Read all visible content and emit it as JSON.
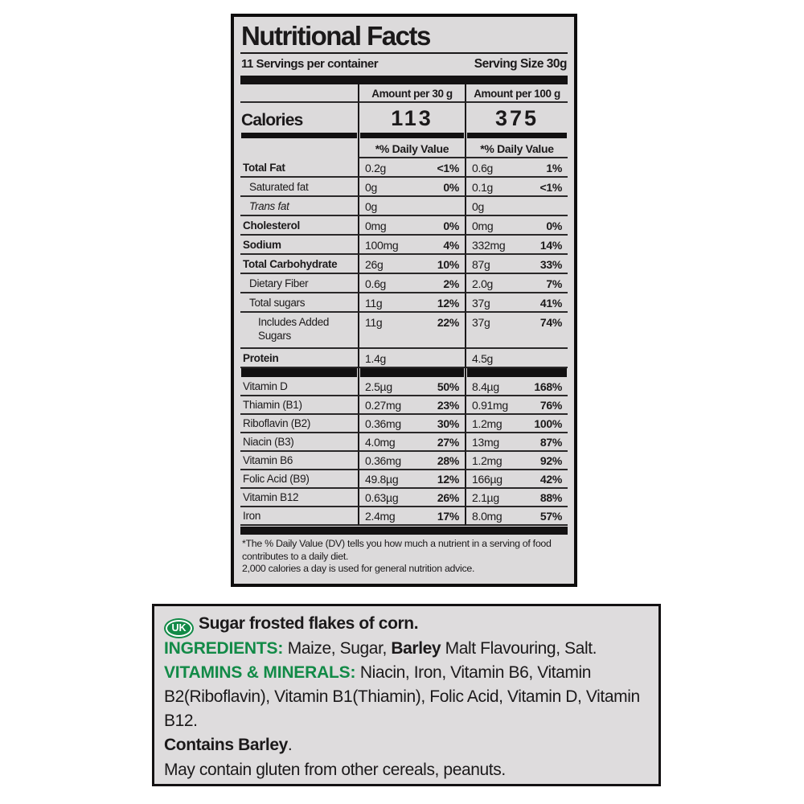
{
  "colors": {
    "green": "#128a47",
    "panel_bg": "#dcdadb",
    "bar_black": "#141213"
  },
  "nutrition_panel": {
    "title": "Nutritional Facts",
    "servings_per_container": "11 Servings per container",
    "serving_size": "Serving Size 30g",
    "column_headers": {
      "per30": "Amount per 30 g",
      "per100": "Amount per 100 g"
    },
    "calories": {
      "label": "Calories",
      "per30": "113",
      "per100": "375"
    },
    "daily_value_header": "*% Daily Value",
    "nutrient_rows": [
      {
        "label": "Total Fat",
        "bold": true,
        "italic": false,
        "indent": 0,
        "amt30": "0.2g",
        "dv30": "<1%",
        "amt100": "0.6g",
        "dv100": "1%"
      },
      {
        "label": "Saturated fat",
        "bold": false,
        "italic": false,
        "indent": 1,
        "amt30": "0g",
        "dv30": "0%",
        "amt100": "0.1g",
        "dv100": "<1%"
      },
      {
        "label": "Trans fat",
        "bold": false,
        "italic": true,
        "indent": 1,
        "amt30": "0g",
        "dv30": "",
        "amt100": "0g",
        "dv100": ""
      },
      {
        "label": "Cholesterol",
        "bold": true,
        "italic": false,
        "indent": 0,
        "amt30": "0mg",
        "dv30": "0%",
        "amt100": "0mg",
        "dv100": "0%"
      },
      {
        "label": "Sodium",
        "bold": true,
        "italic": false,
        "indent": 0,
        "amt30": "100mg",
        "dv30": "4%",
        "amt100": "332mg",
        "dv100": "14%"
      },
      {
        "label": "Total Carbohydrate",
        "bold": true,
        "italic": false,
        "indent": 0,
        "amt30": "26g",
        "dv30": "10%",
        "amt100": "87g",
        "dv100": "33%"
      },
      {
        "label": "Dietary Fiber",
        "bold": false,
        "italic": false,
        "indent": 1,
        "amt30": "0.6g",
        "dv30": "2%",
        "amt100": "2.0g",
        "dv100": "7%"
      },
      {
        "label": "Total sugars",
        "bold": false,
        "italic": false,
        "indent": 1,
        "amt30": "11g",
        "dv30": "12%",
        "amt100": "37g",
        "dv100": "41%"
      },
      {
        "label": "Includes Added Sugars",
        "bold": false,
        "italic": false,
        "indent": 2,
        "amt30": "11g",
        "dv30": "22%",
        "amt100": "37g",
        "dv100": "74%",
        "tall": true
      },
      {
        "label": "Protein",
        "bold": true,
        "italic": false,
        "indent": 0,
        "amt30": "1.4g",
        "dv30": "",
        "amt100": "4.5g",
        "dv100": ""
      }
    ],
    "vitamin_rows": [
      {
        "label": "Vitamin D",
        "amt30": "2.5µg",
        "dv30": "50%",
        "amt100": "8.4µg",
        "dv100": "168%"
      },
      {
        "label": "Thiamin (B1)",
        "amt30": "0.27mg",
        "dv30": "23%",
        "amt100": "0.91mg",
        "dv100": "76%"
      },
      {
        "label": "Riboflavin (B2)",
        "amt30": "0.36mg",
        "dv30": "30%",
        "amt100": "1.2mg",
        "dv100": "100%"
      },
      {
        "label": "Niacin (B3)",
        "amt30": "4.0mg",
        "dv30": "27%",
        "amt100": "13mg",
        "dv100": "87%"
      },
      {
        "label": "Vitamin B6",
        "amt30": "0.36mg",
        "dv30": "28%",
        "amt100": "1.2mg",
        "dv100": "92%"
      },
      {
        "label": "Folic Acid (B9)",
        "amt30": "49.8µg",
        "dv30": "12%",
        "amt100": "166µg",
        "dv100": "42%"
      },
      {
        "label": "Vitamin B12",
        "amt30": "0.63µg",
        "dv30": "26%",
        "amt100": "2.1µg",
        "dv100": "88%"
      },
      {
        "label": "Iron",
        "amt30": "2.4mg",
        "dv30": "17%",
        "amt100": "8.0mg",
        "dv100": "57%"
      }
    ],
    "footnote_line1": "*The % Daily Value (DV) tells you how much a nutrient in a serving of food contributes to a daily diet.",
    "footnote_line2": "2,000 calories a day is used for general nutrition advice."
  },
  "ingredients_panel": {
    "uk_badge": "UK",
    "paragraphs": [
      {
        "name": "product-name-line",
        "runs": [
          {
            "t": "UK",
            "badge": true
          },
          {
            "t": "Sugar frosted flakes of corn.",
            "b": true
          }
        ]
      },
      {
        "name": "ingredients-line",
        "runs": [
          {
            "t": "INGREDIENTS: ",
            "g": true
          },
          {
            "t": "Maize, Sugar, "
          },
          {
            "t": "Barley",
            "b": true
          },
          {
            "t": " Malt Flavouring, Salt."
          }
        ]
      },
      {
        "name": "vitamins-minerals-line",
        "runs": [
          {
            "t": "VITAMINS & MINERALS: ",
            "g": true
          },
          {
            "t": "Niacin, Iron, Vitamin B6, Vitamin B2(Riboflavin), Vitamin B1(Thiamin), Folic Acid, Vitamin D, Vitamin B12."
          }
        ]
      },
      {
        "name": "contains-line",
        "runs": [
          {
            "t": "Contains Barley",
            "b": true
          },
          {
            "t": "."
          }
        ]
      },
      {
        "name": "may-contain-line",
        "runs": [
          {
            "t": "May contain gluten from other cereals, peanuts."
          }
        ]
      }
    ]
  }
}
